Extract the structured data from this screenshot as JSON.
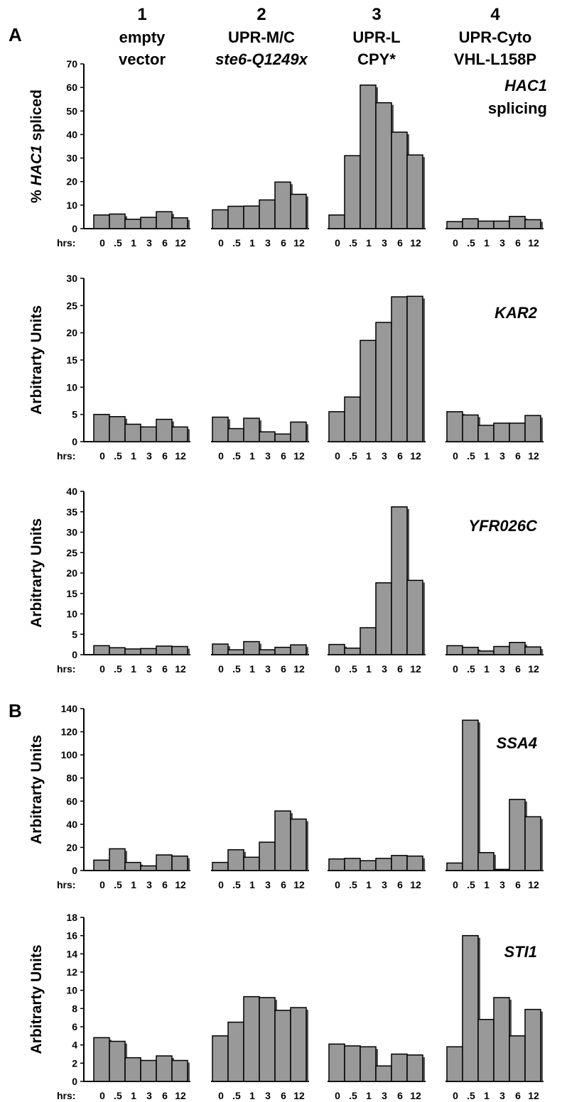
{
  "panel_letters": [
    "A",
    "B"
  ],
  "column_headers": [
    {
      "number": "1",
      "line1": "empty",
      "line2": "vector"
    },
    {
      "number": "2",
      "line1": "UPR-M/C",
      "line2": "ste6-Q1249x"
    },
    {
      "number": "3",
      "line1": "UPR-L",
      "line2": "CPY*"
    },
    {
      "number": "4",
      "line1": "UPR-Cyto",
      "line2": "VHL-L158P"
    }
  ],
  "x_axis_prefix": "hrs:",
  "chart_data": [
    {
      "type": "bar",
      "gene": "HAC1",
      "gene_subtitle": "splicing",
      "ylabel_prefix": "% ",
      "ylabel_gene": "HAC1",
      "ylabel_suffix": " spliced",
      "ylim": [
        0,
        70
      ],
      "yticks": [
        "0",
        "10",
        "20",
        "30",
        "40",
        "50",
        "60",
        "70"
      ],
      "categories": [
        "0",
        ".5",
        "1",
        "3",
        "6",
        "12"
      ],
      "series": [
        {
          "values": [
            5.8,
            6.2,
            4.0,
            4.8,
            7.2,
            4.6
          ]
        },
        {
          "values": [
            8.0,
            9.5,
            9.6,
            12.2,
            19.8,
            14.6
          ]
        },
        {
          "values": [
            5.8,
            31.0,
            61.0,
            53.5,
            41.0,
            31.3
          ]
        },
        {
          "values": [
            3.0,
            4.2,
            3.2,
            3.2,
            5.2,
            3.8
          ]
        }
      ]
    },
    {
      "type": "bar",
      "gene": "KAR2",
      "ylabel": "Arbitrarty Units",
      "ylim": [
        0,
        30
      ],
      "yticks": [
        "0",
        "5",
        "10",
        "15",
        "20",
        "25",
        "30"
      ],
      "categories": [
        "0",
        ".5",
        "1",
        "3",
        "6",
        "12"
      ],
      "series": [
        {
          "values": [
            5.0,
            4.6,
            3.2,
            2.7,
            4.1,
            2.7
          ]
        },
        {
          "values": [
            4.5,
            2.4,
            4.3,
            1.8,
            1.4,
            3.6
          ]
        },
        {
          "values": [
            5.5,
            8.2,
            18.6,
            21.9,
            26.6,
            26.7
          ]
        },
        {
          "values": [
            5.5,
            4.9,
            3.0,
            3.4,
            3.4,
            4.8
          ]
        }
      ]
    },
    {
      "type": "bar",
      "gene": "YFR026C",
      "ylabel": "Arbitrarty Units",
      "ylim": [
        0,
        40
      ],
      "yticks": [
        "0",
        "5",
        "10",
        "15",
        "20",
        "25",
        "30",
        "35",
        "40"
      ],
      "categories": [
        "0",
        ".5",
        "1",
        "3",
        "6",
        "12"
      ],
      "series": [
        {
          "values": [
            2.2,
            1.7,
            1.4,
            1.5,
            2.1,
            2.0
          ]
        },
        {
          "values": [
            2.6,
            1.2,
            3.2,
            1.2,
            1.8,
            2.4
          ]
        },
        {
          "values": [
            2.5,
            1.6,
            6.6,
            17.6,
            36.2,
            18.2
          ]
        },
        {
          "values": [
            2.2,
            1.8,
            0.9,
            2.0,
            3.0,
            1.9
          ]
        }
      ]
    },
    {
      "type": "bar",
      "gene": "SSA4",
      "ylabel": "Arbitrarty Units",
      "ylim": [
        0,
        140
      ],
      "yticks": [
        "0",
        "20",
        "40",
        "60",
        "80",
        "100",
        "120",
        "140"
      ],
      "categories": [
        "0",
        ".5",
        "1",
        "3",
        "6",
        "12"
      ],
      "series": [
        {
          "values": [
            9.0,
            18.8,
            7.0,
            4.0,
            13.5,
            12.5
          ]
        },
        {
          "values": [
            7.0,
            18.0,
            11.5,
            24.5,
            51.5,
            44.5
          ]
        },
        {
          "values": [
            10.0,
            10.5,
            8.5,
            10.5,
            13.0,
            12.5
          ]
        },
        {
          "values": [
            6.5,
            130.0,
            15.5,
            1.0,
            61.5,
            46.5
          ]
        }
      ]
    },
    {
      "type": "bar",
      "gene": "STI1",
      "ylabel": "Arbitrarty Units",
      "ylim": [
        0,
        18
      ],
      "yticks": [
        "0",
        "2",
        "4",
        "6",
        "8",
        "10",
        "12",
        "14",
        "16",
        "18"
      ],
      "categories": [
        "0",
        ".5",
        "1",
        "3",
        "6",
        "12"
      ],
      "series": [
        {
          "values": [
            4.8,
            4.4,
            2.6,
            2.3,
            2.8,
            2.3
          ]
        },
        {
          "values": [
            5.0,
            6.5,
            9.3,
            9.2,
            7.8,
            8.1
          ]
        },
        {
          "values": [
            4.1,
            3.9,
            3.8,
            1.7,
            3.0,
            2.9
          ]
        },
        {
          "values": [
            3.8,
            16.0,
            6.8,
            9.2,
            5.0,
            7.9
          ]
        }
      ]
    }
  ]
}
